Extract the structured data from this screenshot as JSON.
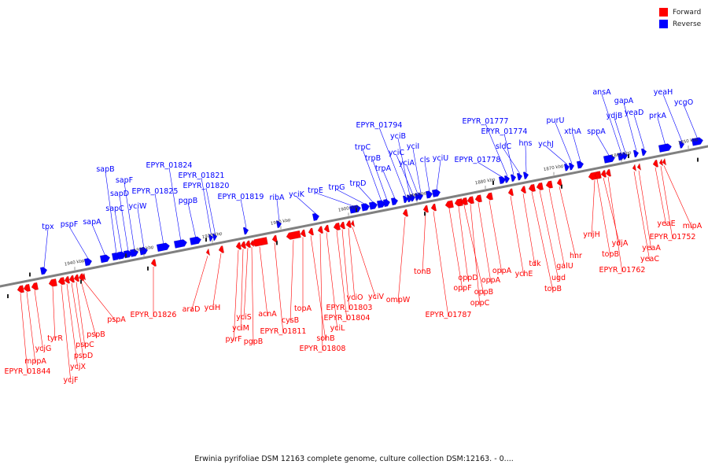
{
  "legend": [
    {
      "label": "Forward",
      "color": "#ff0000"
    },
    {
      "label": "Reverse",
      "color": "#0000ff"
    }
  ],
  "caption": "Erwinia pyrifoliae DSM 12163 complete genome, culture collection DSM:12163. - 0....",
  "axis": {
    "color": "#808080",
    "ticks": [
      "1940 kbp",
      "1930 kbp",
      "1920 kbp",
      "1910 kbp",
      "1900 kbp",
      "1890 kbp",
      "1880 kbp",
      "1870 kbp",
      "1860 kbp",
      "1850 kbp"
    ]
  },
  "reverse_genes": [
    "tpx",
    "pspF",
    "sapA",
    "sapB",
    "sapC",
    "sapD",
    "sapF",
    "yciW",
    "EPYR_01825",
    "EPYR_01824",
    "pgpB",
    "EPYR_01821",
    "EPYR_01820",
    "EPYR_01819",
    "ribA",
    "yciK",
    "trpE",
    "trpG",
    "trpD",
    "trpC",
    "trpB",
    "trpA",
    "EPYR_01794",
    "yciB",
    "yciC",
    "yciA",
    "yciI",
    "cls",
    "yciU",
    "EPYR_01778",
    "EPYR_01777",
    "EPYR_01774",
    "sldC",
    "hns",
    "ychJ",
    "purU",
    "xthA",
    "sppA",
    "ansA",
    "ydjB",
    "gapA",
    "yeaD",
    "prkA",
    "yeaH",
    "ycgO"
  ],
  "forward_genes": [
    "EPYR_01844",
    "mppA",
    "ycjG",
    "tyrR",
    "ycjF",
    "ycjX",
    "pspD",
    "pspC",
    "pspB",
    "pspA",
    "EPYR_01826",
    "araD",
    "yciH",
    "pyrF",
    "yciM",
    "yciS",
    "pgpB",
    "acnA",
    "EPYR_01811",
    "cysB",
    "topA",
    "sohB",
    "EPYR_01808",
    "yciL",
    "EPYR_01804",
    "EPYR_01803",
    "yciO",
    "yciV",
    "ompW",
    "tonB",
    "EPYR_01787",
    "oppF",
    "oppD",
    "oppB",
    "oppC",
    "oppA",
    "oppA",
    "ychE",
    "tdk",
    "topB",
    "ugd",
    "galU",
    "hnr",
    "ynjH",
    "topB",
    "ydjA",
    "EPYR_01762",
    "yeaC",
    "yeaA",
    "yeaE",
    "EPYR_01752",
    "mipA"
  ]
}
